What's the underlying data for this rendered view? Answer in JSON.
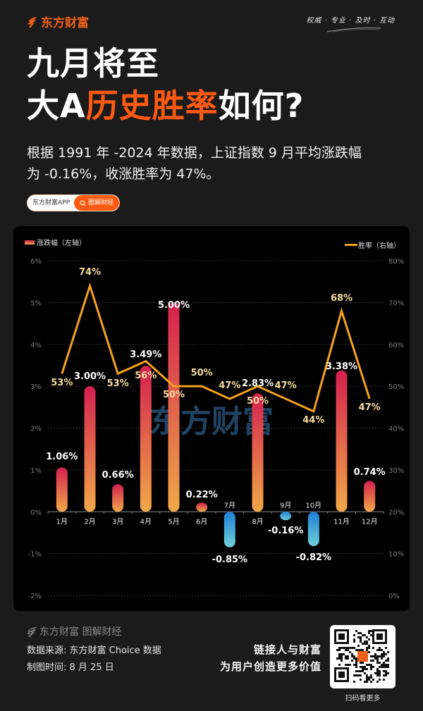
{
  "header": {
    "brand": "东方财富",
    "slogan": "权威 · 专业 · 及时 · 互动"
  },
  "title": {
    "line1": "九月将至",
    "line2_prefix": "大A",
    "line2_highlight": "历史胜率",
    "line2_suffix": "如何?"
  },
  "subtitle": {
    "line1": "根据 1991 年 -2024 年数据，上证指数 9 月平均涨跌幅",
    "line2": "为 -0.16%，收涨胜率为 47%。"
  },
  "pill": {
    "left": "东方财富APP",
    "right": "图解财经",
    "icon": "search-icon"
  },
  "chart": {
    "legend_bar": "涨跌幅（左轴）",
    "legend_line": "胜率（右轴）",
    "watermark": "东方财富"
  },
  "chart_data": {
    "type": "bar+line",
    "title": "上证指数各月平均涨跌幅与收涨胜率（1991-2024）",
    "categories": [
      "1月",
      "2月",
      "3月",
      "4月",
      "5月",
      "6月",
      "7月",
      "8月",
      "9月",
      "10月",
      "11月",
      "12月"
    ],
    "series": [
      {
        "name": "涨跌幅（左轴）",
        "type": "bar",
        "axis": "left",
        "values": [
          1.06,
          3.0,
          0.66,
          3.49,
          5.0,
          0.22,
          -0.85,
          2.83,
          -0.16,
          -0.82,
          3.38,
          0.74
        ],
        "labels": [
          "1.06%",
          "3.00%",
          "0.66%",
          "3.49%",
          "5.00%",
          "0.22%",
          "-0.85%",
          "2.83%",
          "-0.16%",
          "-0.82%",
          "3.38%",
          "0.74%"
        ]
      },
      {
        "name": "胜率（右轴）",
        "type": "line",
        "axis": "right",
        "values": [
          53,
          74,
          53,
          56,
          50,
          50,
          47,
          50,
          47,
          44,
          68,
          47
        ],
        "labels": [
          "53%",
          "74%",
          "53%",
          "56%",
          "50%",
          "50%",
          "47%",
          "50%",
          "47%",
          "44%",
          "68%",
          "47%"
        ]
      }
    ],
    "left_axis": {
      "ticks": [
        "6%",
        "5%",
        "4%",
        "3%",
        "2%",
        "1%",
        "0%",
        "-1%",
        "-2%"
      ],
      "range": [
        -2,
        6
      ]
    },
    "right_axis": {
      "ticks": [
        "80%",
        "70%",
        "60%",
        "50%",
        "40%",
        "30%",
        "20%",
        "10%",
        "0%"
      ],
      "range": [
        0,
        80
      ]
    },
    "grid": true,
    "legend_position": "top",
    "colors": {
      "positive_bar_top": "#d4204e",
      "positive_bar_bottom": "#f0a848",
      "negative_bar_top": "#1d7fd4",
      "negative_bar_bottom": "#6ed0d8",
      "line": "#f5a21b",
      "line_label": "#f7dca0",
      "bar_label": "#ffffff"
    }
  },
  "footer": {
    "brand": "东方财富 图解财经",
    "source": "数据来源: 东方财富 Choice 数据",
    "date": "制图时间: 8 月 25 日",
    "slogan_line1": "链接人与财富",
    "slogan_line2": "为用户创造更多价值",
    "qr_caption": "扫码看更多"
  },
  "colors": {
    "accent": "#ff5a12",
    "background": "#1b1b1b",
    "card": "#000000"
  }
}
